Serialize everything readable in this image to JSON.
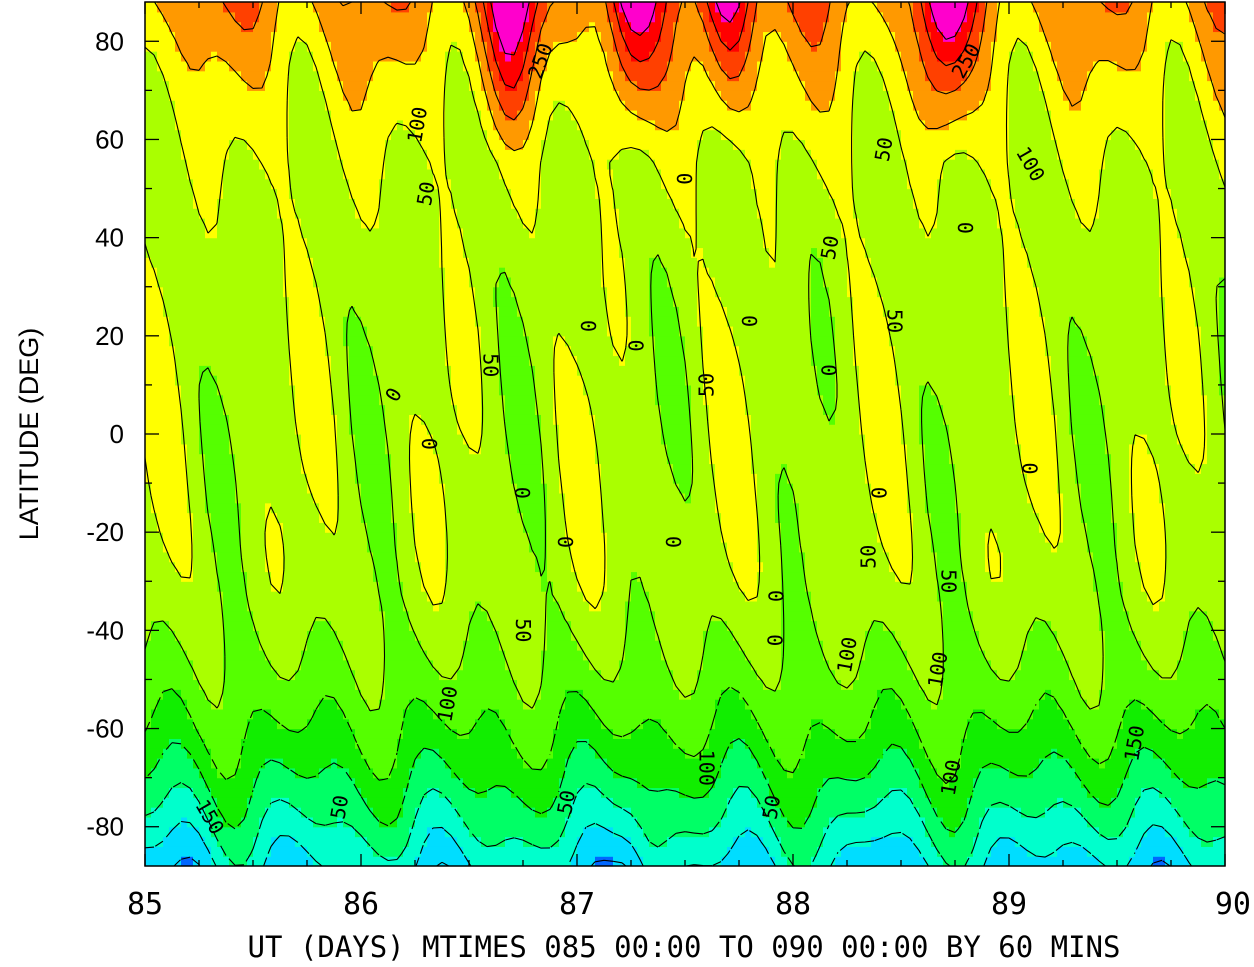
{
  "chart_data": {
    "type": "heatmap",
    "subtype": "filled-contour",
    "xlabel": "UT (DAYS) MTIMES 085 00:00 TO 090 00:00 BY   60 MINS",
    "ylabel": "LATITUDE (DEG)",
    "xlim": [
      85,
      90
    ],
    "ylim": [
      -88,
      88
    ],
    "x_ticks": [
      "85",
      "86",
      "87",
      "88",
      "89",
      "90"
    ],
    "y_ticks": [
      "80",
      "60",
      "40",
      "20",
      "0",
      "-20",
      "-40",
      "-60",
      "-80"
    ],
    "color_levels": [
      {
        "min": 250,
        "color": "#ff00cc"
      },
      {
        "min": 200,
        "color": "#ff0000"
      },
      {
        "min": 150,
        "color": "#ff4000"
      },
      {
        "min": 100,
        "color": "#ff9900"
      },
      {
        "min": 50,
        "color": "#ffff00"
      },
      {
        "min": 0,
        "color": "#aaff00"
      },
      {
        "min": -50,
        "color": "#55ff00"
      },
      {
        "min": -100,
        "color": "#11ee00"
      },
      {
        "min": -150,
        "color": "#00ff66"
      },
      {
        "min": -200,
        "color": "#00ffcc"
      },
      {
        "min": -250,
        "color": "#00ddff"
      },
      {
        "min": -300,
        "color": "#0066ff"
      },
      {
        "min": -9999,
        "color": "#0022aa"
      }
    ],
    "contour_labels": [
      {
        "text": "250",
        "x": 86.83,
        "y": 76,
        "angle": -70
      },
      {
        "text": "250",
        "x": 88.8,
        "y": 76,
        "angle": -60
      },
      {
        "text": "100",
        "x": 86.26,
        "y": 63,
        "angle": -80
      },
      {
        "text": "100",
        "x": 89.1,
        "y": 55,
        "angle": 60
      },
      {
        "text": "50",
        "x": 86.3,
        "y": 49,
        "angle": -80
      },
      {
        "text": "50",
        "x": 88.42,
        "y": 58,
        "angle": -80
      },
      {
        "text": "50",
        "x": 88.17,
        "y": 38,
        "angle": -80
      },
      {
        "text": "50",
        "x": 88.47,
        "y": 23,
        "angle": 90
      },
      {
        "text": "50",
        "x": 86.6,
        "y": 14,
        "angle": 90
      },
      {
        "text": "50",
        "x": 87.6,
        "y": 10,
        "angle": -90
      },
      {
        "text": "50",
        "x": 88.35,
        "y": -25,
        "angle": -90
      },
      {
        "text": "50",
        "x": 88.72,
        "y": -30,
        "angle": 90
      },
      {
        "text": "50",
        "x": 86.75,
        "y": -40,
        "angle": 90
      },
      {
        "text": "50",
        "x": 85.9,
        "y": -76,
        "angle": -80
      },
      {
        "text": "50",
        "x": 86.95,
        "y": -75,
        "angle": -80
      },
      {
        "text": "50",
        "x": 87.9,
        "y": -76,
        "angle": -80
      },
      {
        "text": "0",
        "x": 87.5,
        "y": 52,
        "angle": -90
      },
      {
        "text": "0",
        "x": 88.8,
        "y": 42,
        "angle": -90
      },
      {
        "text": "0",
        "x": 87.05,
        "y": 22,
        "angle": 90
      },
      {
        "text": "0",
        "x": 87.27,
        "y": 18,
        "angle": 90
      },
      {
        "text": "0",
        "x": 87.8,
        "y": 23,
        "angle": -90
      },
      {
        "text": "0",
        "x": 88.17,
        "y": 13,
        "angle": -90
      },
      {
        "text": "0",
        "x": 86.15,
        "y": 8,
        "angle": -60
      },
      {
        "text": "0",
        "x": 86.32,
        "y": -2,
        "angle": -90
      },
      {
        "text": "0",
        "x": 86.75,
        "y": -12,
        "angle": -90
      },
      {
        "text": "0",
        "x": 87.45,
        "y": -22,
        "angle": -90
      },
      {
        "text": "0",
        "x": 86.95,
        "y": -22,
        "angle": -90
      },
      {
        "text": "0",
        "x": 88.4,
        "y": -12,
        "angle": -90
      },
      {
        "text": "0",
        "x": 89.1,
        "y": -7,
        "angle": -90
      },
      {
        "text": "0",
        "x": 87.92,
        "y": -33,
        "angle": 90
      },
      {
        "text": "0",
        "x": 87.92,
        "y": -42,
        "angle": -90
      },
      {
        "text": "100",
        "x": 86.4,
        "y": -55,
        "angle": -80
      },
      {
        "text": "100",
        "x": 88.25,
        "y": -45,
        "angle": -80
      },
      {
        "text": "100",
        "x": 88.67,
        "y": -48,
        "angle": -80
      },
      {
        "text": "100",
        "x": 87.6,
        "y": -68,
        "angle": 90
      },
      {
        "text": "100",
        "x": 88.73,
        "y": -70,
        "angle": -80
      },
      {
        "text": "150",
        "x": 89.58,
        "y": -63,
        "angle": -80
      },
      {
        "text": "150",
        "x": 85.3,
        "y": -78,
        "angle": 60
      }
    ]
  }
}
